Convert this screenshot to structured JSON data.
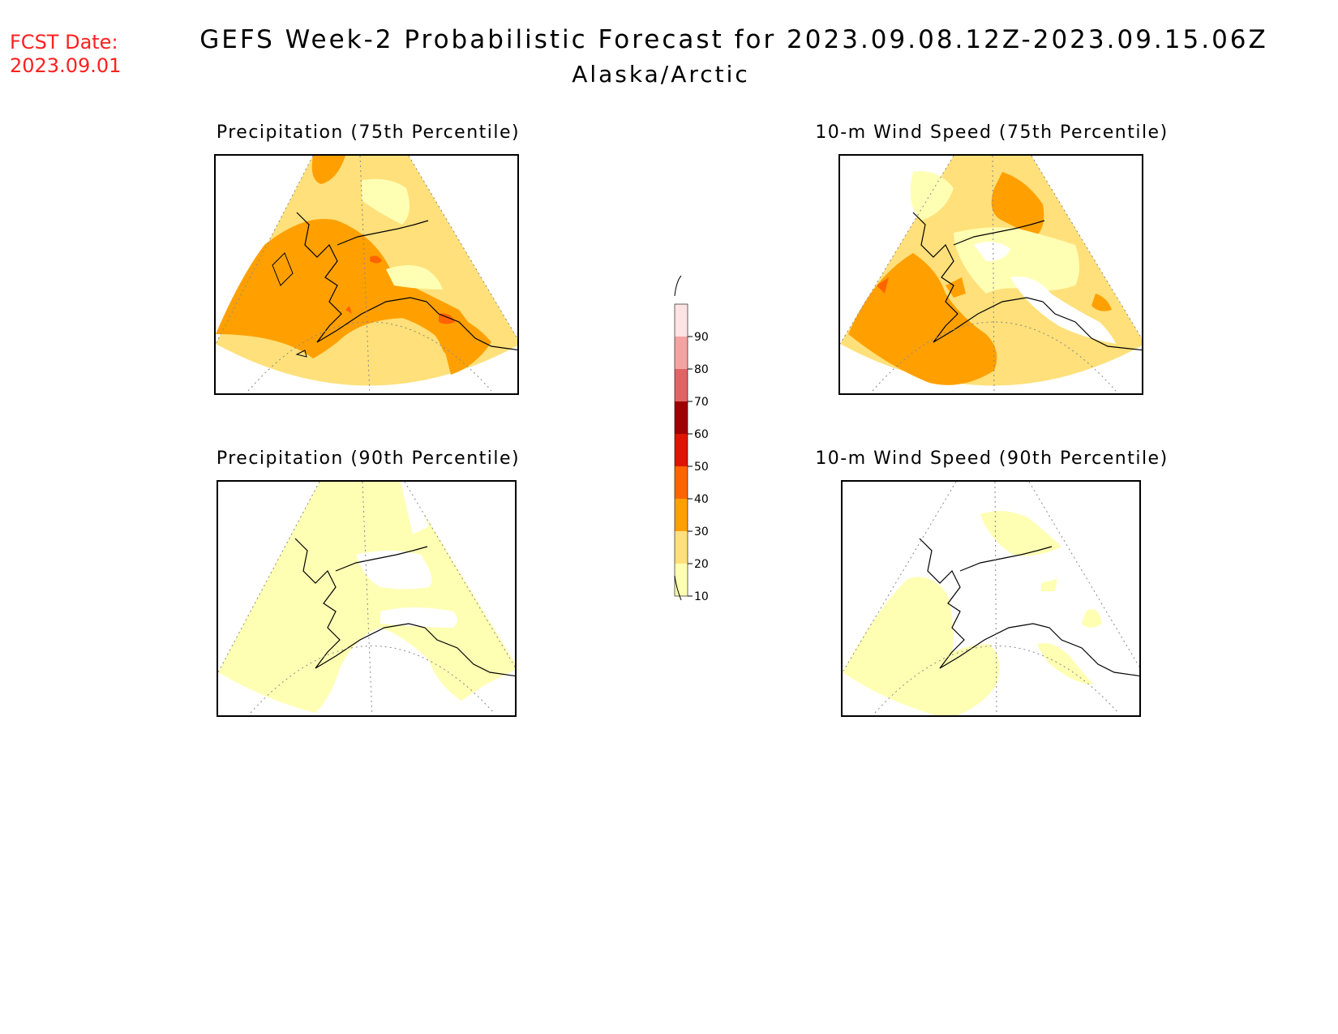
{
  "fcst_date": {
    "label": "FCST Date:",
    "value": "2023.09.01"
  },
  "title": "GEFS Week-2 Probabilistic Forecast for 2023.09.08.12Z-2023.09.15.06Z",
  "subtitle": "Alaska/Arctic",
  "panels": [
    {
      "id": "precip75",
      "title": "Precipitation (75th Percentile)",
      "dominant_category": "30-40"
    },
    {
      "id": "wind75",
      "title": "10-m Wind Speed (75th Percentile)",
      "dominant_category": "20-30"
    },
    {
      "id": "precip90",
      "title": "Precipitation (90th Percentile)",
      "dominant_category": "10-20"
    },
    {
      "id": "wind90",
      "title": "10-m Wind Speed (90th Percentile)",
      "dominant_category": "10-20"
    }
  ],
  "colorbar": {
    "labels": [
      "90",
      "80",
      "70",
      "60",
      "50",
      "40",
      "30",
      "20",
      "10"
    ],
    "bands": [
      {
        "range": "90-100",
        "color": "#fde3e3"
      },
      {
        "range": "80-90",
        "color": "#f4a3a3"
      },
      {
        "range": "70-80",
        "color": "#e06464"
      },
      {
        "range": "60-70",
        "color": "#a00000"
      },
      {
        "range": "50-60",
        "color": "#e01400"
      },
      {
        "range": "40-50",
        "color": "#ff6400"
      },
      {
        "range": "30-40",
        "color": "#ffa000"
      },
      {
        "range": "20-30",
        "color": "#ffe07a"
      },
      {
        "range": "10-20",
        "color": "#ffffb4"
      }
    ]
  }
}
